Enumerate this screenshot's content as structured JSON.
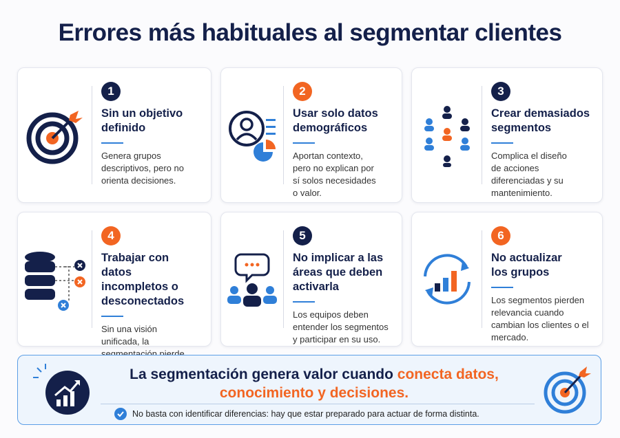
{
  "title": "Errores más habituales al segmentar clientes",
  "cards": [
    {
      "number": "1",
      "title": "Sin un objetivo definido",
      "description": "Genera grupos descriptivos, pero no orienta decisiones."
    },
    {
      "number": "2",
      "title": "Usar solo datos demográficos",
      "description": "Aportan contexto, pero no explican por sí solos necesidades o valor."
    },
    {
      "number": "3",
      "title": "Crear demasiados segmentos",
      "description": "Complica el diseño de acciones diferenciadas y su mantenimiento."
    },
    {
      "number": "4",
      "title": "Trabajar con datos incompletos o desconectados",
      "description": "Sin una visión unificada, la segmentación pierde coherencia."
    },
    {
      "number": "5",
      "title": "No implicar a las áreas que deben activarla",
      "description": "Los equipos deben entender los segmentos y participar en su uso."
    },
    {
      "number": "6",
      "title": "No actualizar los grupos",
      "description": "Los segmentos pierden relevancia cuando cambian los clientes o el mercado."
    }
  ],
  "footer": {
    "lead": "La segmentación genera valor cuando",
    "highlight": "conecta datos, conocimiento y decisiones.",
    "note": "No basta con identificar diferencias: hay que estar preparado para actuar de forma distinta."
  }
}
